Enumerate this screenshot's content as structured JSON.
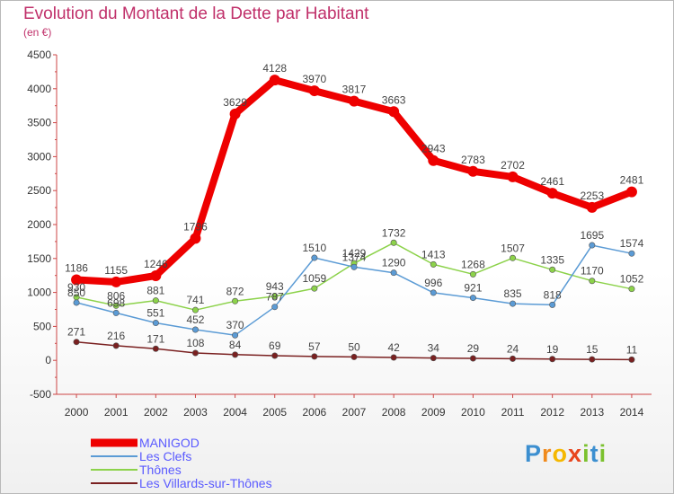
{
  "chart_data": {
    "type": "line",
    "title": "Evolution du Montant de la Dette par Habitant",
    "subtitle": "(en €)",
    "x": [
      "2000",
      "2001",
      "2002",
      "2003",
      "2004",
      "2005",
      "2006",
      "2007",
      "2008",
      "2009",
      "2010",
      "2011",
      "2012",
      "2013",
      "2014"
    ],
    "ylim": [
      -500,
      4500
    ],
    "yticks": [
      -500,
      0,
      500,
      1000,
      1500,
      2000,
      2500,
      3000,
      3500,
      4000,
      4500
    ],
    "grid": false,
    "legend_position": "bottom-left",
    "series": [
      {
        "name": "MANIGOD",
        "color": "#ee0000",
        "values": [
          1186,
          1155,
          1246,
          1796,
          3629,
          4128,
          3970,
          3817,
          3663,
          2943,
          2783,
          2702,
          2461,
          2253,
          2481
        ]
      },
      {
        "name": "Les Clefs",
        "color": "#5b9bd5",
        "values": [
          850,
          698,
          551,
          452,
          370,
          787,
          1510,
          1374,
          1290,
          996,
          921,
          835,
          818,
          1695,
          1574
        ]
      },
      {
        "name": "Thônes",
        "color": "#8cd24a",
        "values": [
          930,
          806,
          881,
          741,
          872,
          943,
          1059,
          1429,
          1732,
          1413,
          1268,
          1507,
          1335,
          1170,
          1052
        ]
      },
      {
        "name": "Les Villards-sur-Thônes",
        "color": "#7a2020",
        "values": [
          271,
          216,
          171,
          108,
          84,
          69,
          57,
          50,
          42,
          34,
          29,
          24,
          19,
          15,
          11
        ]
      }
    ]
  },
  "logo_text": "Proxiti"
}
